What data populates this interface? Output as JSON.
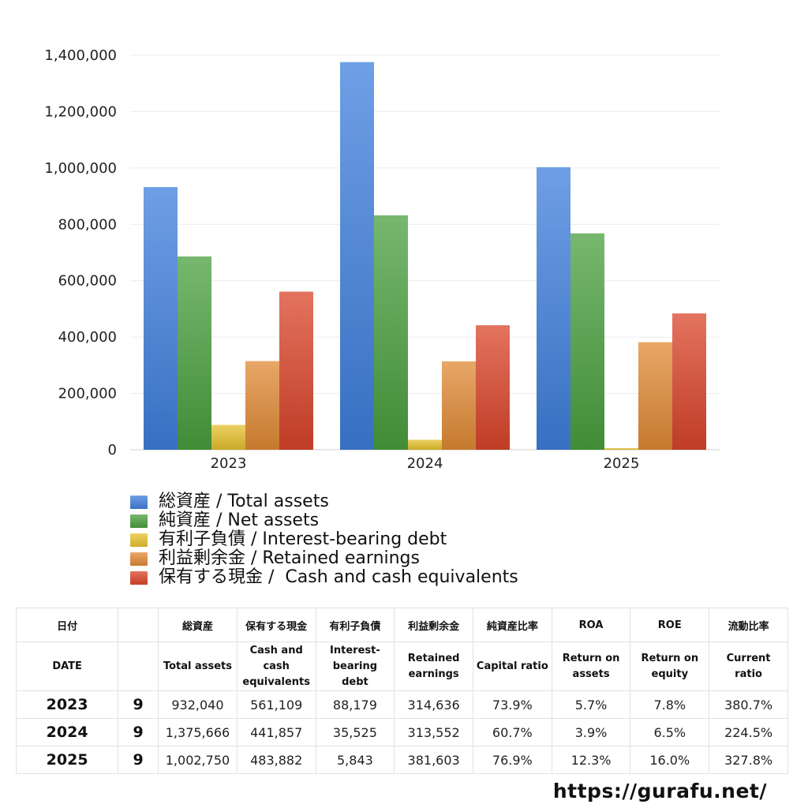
{
  "chart_data": {
    "type": "bar",
    "categories": [
      "2023",
      "2024",
      "2025"
    ],
    "ylim": [
      0,
      1400000
    ],
    "yticks": [
      0,
      200000,
      400000,
      600000,
      800000,
      1000000,
      1200000,
      1400000
    ],
    "ytick_labels": [
      "0",
      "200,000",
      "400,000",
      "600,000",
      "800,000",
      "1,000,000",
      "1,200,000",
      "1,400,000"
    ],
    "grid": true,
    "legend_position": "bottom-left",
    "series": [
      {
        "name": "総資産 / Total assets",
        "color": "#3f7fdc",
        "values": [
          932040,
          1375666,
          1002750
        ]
      },
      {
        "name": "純資産 / Net assets",
        "color": "#4a9f3f",
        "values": [
          686000,
          832000,
          768000
        ]
      },
      {
        "name": "有利子負債 / Interest-bearing debt",
        "color": "#e6c12e",
        "values": [
          88179,
          35525,
          5843
        ]
      },
      {
        "name": "利益剰余金 / Retained earnings",
        "color": "#e08a34",
        "values": [
          314636,
          313552,
          381603
        ]
      },
      {
        "name": "保有する現金 /  Cash and cash equivalents",
        "color": "#d9442a",
        "values": [
          561109,
          441857,
          483882
        ]
      }
    ]
  },
  "table": {
    "header_jp": [
      "日付",
      "",
      "総資産",
      "保有する現金",
      "有利子負債",
      "利益剰余金",
      "純資産比率",
      "ROA",
      "ROE",
      "流動比率"
    ],
    "header_en": [
      "DATE",
      "",
      "Total assets",
      "Cash and cash\nequivalents",
      "Interest-\nbearing\ndebt",
      "Retained\nearnings",
      "Capital ratio",
      "Return on\nassets",
      "Return on\nequity",
      "Current\nratio"
    ],
    "rows": [
      {
        "year": "2023",
        "month": "9",
        "cells": [
          "932,040",
          "561,109",
          "88,179",
          "314,636",
          "73.9%",
          "5.7%",
          "7.8%",
          "380.7%"
        ]
      },
      {
        "year": "2024",
        "month": "9",
        "cells": [
          "1,375,666",
          "441,857",
          "35,525",
          "313,552",
          "60.7%",
          "3.9%",
          "6.5%",
          "224.5%"
        ]
      },
      {
        "year": "2025",
        "month": "9",
        "cells": [
          "1,002,750",
          "483,882",
          "5,843",
          "381,603",
          "76.9%",
          "12.3%",
          "16.0%",
          "327.8%"
        ]
      }
    ]
  },
  "footer": {
    "url": "https://gurafu.net/"
  }
}
